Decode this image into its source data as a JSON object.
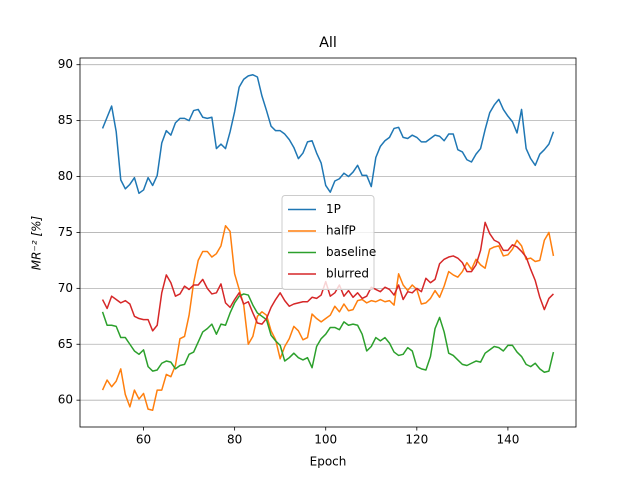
{
  "chart_data": {
    "type": "line",
    "title": "All",
    "xlabel": "Epoch",
    "ylabel": "MR⁻² [%]",
    "x": [
      51,
      52,
      53,
      54,
      55,
      56,
      57,
      58,
      59,
      60,
      61,
      62,
      63,
      64,
      65,
      66,
      67,
      68,
      69,
      70,
      71,
      72,
      73,
      74,
      75,
      76,
      77,
      78,
      79,
      80,
      81,
      82,
      83,
      84,
      85,
      86,
      87,
      88,
      89,
      90,
      91,
      92,
      93,
      94,
      95,
      96,
      97,
      98,
      99,
      100,
      101,
      102,
      103,
      104,
      105,
      106,
      107,
      108,
      109,
      110,
      111,
      112,
      113,
      114,
      115,
      116,
      117,
      118,
      119,
      120,
      121,
      122,
      123,
      124,
      125,
      126,
      127,
      128,
      129,
      130,
      131,
      132,
      133,
      134,
      135,
      136,
      137,
      138,
      139,
      140,
      141,
      142,
      143,
      144,
      145,
      146,
      147,
      148,
      149,
      150
    ],
    "series": [
      {
        "name": "1P",
        "color": "#1f77b4",
        "values": [
          84.3,
          85.3,
          86.3,
          84,
          79.7,
          78.9,
          79.3,
          79.9,
          78.5,
          78.8,
          79.9,
          79.2,
          80.1,
          83,
          84.1,
          83.7,
          84.8,
          85.2,
          85.2,
          85,
          85.9,
          86,
          85.3,
          85.2,
          85.3,
          82.5,
          82.9,
          82.5,
          84,
          85.8,
          88,
          88.7,
          89,
          89.1,
          88.9,
          87.2,
          85.9,
          84.5,
          84.1,
          84.1,
          83.8,
          83.3,
          82.6,
          81.6,
          82.1,
          83.1,
          83.2,
          82.1,
          81.2,
          79.2,
          78.6,
          79.6,
          79.8,
          80.3,
          80,
          80.4,
          81,
          80.1,
          80.1,
          79.1,
          81.7,
          82.7,
          83.2,
          83.5,
          84.3,
          84.4,
          83.5,
          83.4,
          83.7,
          83.5,
          83.1,
          83.1,
          83.4,
          83.7,
          83.6,
          83.2,
          83.8,
          83.8,
          82.4,
          82.2,
          81.5,
          81.3,
          82,
          82.5,
          84.2,
          85.7,
          86.4,
          86.9,
          86,
          85.4,
          84.9,
          83.9,
          86,
          82.5,
          81.6,
          81,
          82,
          82.4,
          82.9,
          84
        ]
      },
      {
        "name": "halfP",
        "color": "#ff7f0e",
        "values": [
          60.9,
          61.8,
          61.2,
          61.7,
          62.8,
          60.5,
          59.4,
          60.9,
          60.1,
          60.6,
          59.2,
          59.1,
          60.9,
          60.9,
          62.3,
          62.1,
          63.1,
          65.5,
          65.7,
          67.6,
          70.5,
          72.5,
          73.3,
          73.3,
          72.8,
          73.1,
          73.8,
          75.6,
          75.1,
          71.3,
          69.9,
          68.5,
          65,
          65.7,
          67.5,
          67.9,
          67.6,
          66.2,
          65.4,
          63.7,
          64.8,
          65.5,
          66.6,
          66.2,
          65.4,
          65.6,
          67.7,
          67.3,
          67,
          67.3,
          67.6,
          68.4,
          67.9,
          68.6,
          68,
          68.1,
          68.9,
          69,
          68.7,
          68.9,
          68.8,
          69,
          68.8,
          68.9,
          68.5,
          71.3,
          70.3,
          69.8,
          70.3,
          69.9,
          68.6,
          68.7,
          69.1,
          69.8,
          69.2,
          70.2,
          71.5,
          71.2,
          71,
          71.5,
          72.3,
          71.7,
          72.6,
          72.1,
          71.8,
          73.5,
          73.7,
          73.8,
          72.9,
          73,
          73.5,
          74.3,
          73.8,
          72.6,
          72.7,
          72.4,
          72.5,
          74.3,
          75,
          72.9
        ]
      },
      {
        "name": "baseline",
        "color": "#2ca02c",
        "values": [
          67.9,
          66.7,
          66.7,
          66.6,
          65.6,
          65.6,
          65,
          64.4,
          64.1,
          64.5,
          63,
          62.6,
          62.7,
          63.3,
          63.5,
          63.4,
          62.8,
          63.1,
          63.2,
          64.1,
          64.3,
          65.2,
          66.1,
          66.4,
          66.8,
          65.9,
          66.8,
          66.7,
          67.8,
          68.7,
          69.3,
          69.5,
          69.4,
          68.5,
          67.8,
          67.5,
          67.2,
          65.8,
          65.3,
          64.9,
          63.5,
          63.8,
          64.2,
          63.8,
          63.6,
          63.8,
          62.9,
          64.8,
          65.5,
          65.9,
          66.5,
          66.5,
          66.3,
          67,
          66.7,
          66.8,
          66.7,
          65.9,
          64.4,
          64.8,
          65.6,
          65.3,
          65.6,
          65.1,
          64.3,
          64,
          64.1,
          64.7,
          64.4,
          63,
          62.8,
          62.7,
          63.9,
          66.4,
          67.4,
          66.1,
          64.2,
          64,
          63.6,
          63.2,
          63.1,
          63.3,
          63.5,
          63.4,
          64.2,
          64.5,
          64.8,
          64.7,
          64.4,
          64.9,
          64.9,
          64.3,
          63.9,
          63.2,
          63,
          63.3,
          62.8,
          62.5,
          62.6,
          64.3
        ]
      },
      {
        "name": "blurred",
        "color": "#d62728",
        "values": [
          69,
          68.2,
          69.3,
          69,
          68.7,
          68.9,
          68.6,
          67.5,
          67.3,
          67.2,
          67.2,
          66.2,
          66.7,
          69.6,
          71.2,
          70.5,
          69.3,
          69.5,
          70.2,
          69.9,
          70.3,
          70.3,
          70.8,
          70,
          69.5,
          69.6,
          70.4,
          68.7,
          68.3,
          69,
          69.6,
          68.6,
          68.8,
          67.8,
          66.9,
          66.8,
          67.3,
          68.3,
          69,
          69.6,
          68.9,
          68.4,
          68.6,
          68.7,
          68.8,
          68.8,
          69.2,
          69.1,
          69.4,
          70.6,
          69.3,
          69.6,
          70.3,
          69.3,
          69.8,
          69.2,
          69.6,
          69.1,
          69.3,
          70.1,
          69.9,
          69.7,
          70.1,
          69.9,
          69.4,
          70.3,
          69,
          69.7,
          69.6,
          70,
          69.7,
          70.9,
          70.5,
          70.8,
          72.2,
          72.6,
          72.8,
          72.9,
          72.7,
          72.3,
          71.5,
          71.5,
          72.1,
          73.4,
          75.9,
          74.9,
          74.3,
          74.1,
          73.4,
          73.4,
          73.9,
          73.7,
          73.3,
          72.8,
          71.7,
          70.7,
          69.2,
          68.1,
          69.1,
          69.5
        ]
      }
    ],
    "xlim": [
      46.05,
      154.95
    ],
    "xticks": [
      60,
      80,
      100,
      120,
      140
    ],
    "ylim": [
      57.6,
      90.6
    ],
    "yticks": [
      60,
      65,
      70,
      75,
      80,
      85,
      90
    ],
    "grid": "y",
    "legend": "center"
  }
}
